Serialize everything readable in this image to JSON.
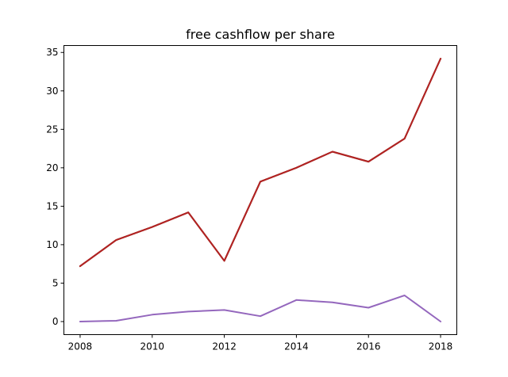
{
  "chart_data": {
    "type": "line",
    "title": "free cashflow per share",
    "xlabel": "",
    "ylabel": "",
    "x": [
      2008,
      2009,
      2010,
      2011,
      2012,
      2013,
      2014,
      2015,
      2016,
      2017,
      2018
    ],
    "xlim": [
      2007.55,
      2018.45
    ],
    "ylim": [
      -1.7,
      35.9
    ],
    "xticks": [
      2008,
      2010,
      2012,
      2014,
      2016,
      2018
    ],
    "yticks": [
      0,
      5,
      10,
      15,
      20,
      25,
      30,
      35
    ],
    "grid": false,
    "legend": "none",
    "series": [
      {
        "color": "#2a52be",
        "values": [
          7.2,
          10.6,
          12.3,
          14.2,
          7.9,
          18.2,
          20.0,
          22.1,
          20.8,
          23.8,
          34.2
        ]
      },
      {
        "color": "#d2691e",
        "values": [
          7.2,
          10.6,
          12.3,
          14.2,
          7.9,
          18.2,
          20.0,
          22.1,
          20.8,
          23.8,
          34.2
        ]
      },
      {
        "color": "#b22222",
        "values": [
          7.2,
          10.6,
          12.3,
          14.2,
          7.9,
          18.2,
          20.0,
          22.1,
          20.8,
          23.8,
          34.2
        ]
      },
      {
        "color": "#9467bd",
        "values": [
          0.0,
          0.1,
          0.9,
          1.3,
          1.5,
          0.7,
          2.8,
          2.5,
          1.8,
          3.4,
          0.0
        ]
      }
    ]
  }
}
